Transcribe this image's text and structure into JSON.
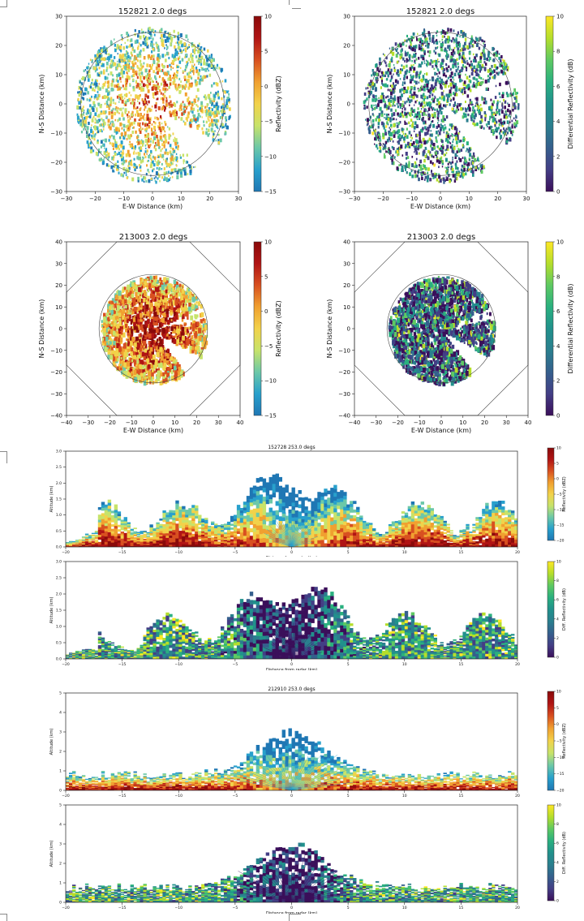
{
  "colors": {
    "refl_scale": [
      "#1f77b4",
      "#28a0cc",
      "#6cc8a8",
      "#c7e36a",
      "#f2d24a",
      "#f0a030",
      "#d85020",
      "#b01414",
      "#8a0a0a"
    ],
    "diff_scale": [
      "#3b0f5a",
      "#433e85",
      "#355f8d",
      "#2a7f8e",
      "#21918c",
      "#2ab07f",
      "#5ec962",
      "#b5de2b",
      "#fde725"
    ]
  },
  "chart_data": [
    {
      "type": "heatmap",
      "title": "152821 2.0 degs",
      "xlabel": "E-W Distance (km)",
      "ylabel": "N-S Distance (km)",
      "xticks": [
        "−30",
        "−20",
        "−10",
        "0",
        "10",
        "20",
        "30"
      ],
      "yticks": [
        "30",
        "20",
        "10",
        "0",
        "−10",
        "−20",
        "−30"
      ],
      "xlim": [
        -30,
        30
      ],
      "ylim": [
        -30,
        30
      ],
      "colorbar_label": "Reflectivity (dBZ)",
      "colorbar_ticks": [
        "10",
        "5",
        "0",
        "−5",
        "−10",
        "−15"
      ],
      "clim": [
        -15,
        10
      ],
      "range_ring_km": 25
    },
    {
      "type": "heatmap",
      "title": "152821 2.0 degs",
      "xlabel": "E-W Distance (km)",
      "ylabel": "N-S Distance (km)",
      "xticks": [
        "−30",
        "−20",
        "−10",
        "0",
        "10",
        "20",
        "30"
      ],
      "yticks": [
        "30",
        "20",
        "10",
        "0",
        "−10",
        "−20",
        "−30"
      ],
      "xlim": [
        -30,
        30
      ],
      "ylim": [
        -30,
        30
      ],
      "colorbar_label": "Differential Reflectivity (dB)",
      "colorbar_ticks": [
        "10",
        "8",
        "6",
        "4",
        "2",
        "0"
      ],
      "clim": [
        0,
        10
      ],
      "range_ring_km": 25
    },
    {
      "type": "heatmap",
      "title": "213003 2.0 degs",
      "xlabel": "E-W Distance (km)",
      "ylabel": "N-S Distance (km)",
      "xticks": [
        "−40",
        "−30",
        "−20",
        "−10",
        "0",
        "10",
        "20",
        "30",
        "40"
      ],
      "yticks": [
        "40",
        "30",
        "20",
        "10",
        "0",
        "−10",
        "−20",
        "−30",
        "−40"
      ],
      "xlim": [
        -40,
        40
      ],
      "ylim": [
        -40,
        40
      ],
      "colorbar_label": "Reflectivity (dBZ)",
      "colorbar_ticks": [
        "10",
        "5",
        "0",
        "−5",
        "−10",
        "−15"
      ],
      "clim": [
        -15,
        10
      ],
      "range_ring_km": 25
    },
    {
      "type": "heatmap",
      "title": "213003 2.0 degs",
      "xlabel": "E-W Distance (km)",
      "ylabel": "N-S Distance (km)",
      "xticks": [
        "−40",
        "−30",
        "−20",
        "−10",
        "0",
        "10",
        "20",
        "30",
        "40"
      ],
      "yticks": [
        "40",
        "30",
        "20",
        "10",
        "0",
        "−10",
        "−20",
        "−30",
        "−40"
      ],
      "xlim": [
        -40,
        40
      ],
      "ylim": [
        -40,
        40
      ],
      "colorbar_label": "Differential Reflectivity (dB)",
      "colorbar_ticks": [
        "10",
        "8",
        "6",
        "4",
        "2",
        "0"
      ],
      "clim": [
        0,
        10
      ],
      "range_ring_km": 25
    },
    {
      "type": "heatmap",
      "title": "152728 253.0 degs",
      "xlabel": "Distance from radar (km)",
      "ylabel": "Altitude (km)",
      "xticks": [
        "−20",
        "−15",
        "−10",
        "−5",
        "0",
        "5",
        "10",
        "15",
        "20"
      ],
      "yticks": [
        "3.0",
        "2.5",
        "2.0",
        "1.5",
        "1.0",
        "0.5",
        "0.0"
      ],
      "xlim": [
        -20,
        20
      ],
      "ylim": [
        0,
        3
      ],
      "colorbar_label": "Reflectivity (dBZ)",
      "colorbar_ticks": [
        "10",
        "5",
        "0",
        "−5",
        "−10",
        "−15",
        "−20"
      ],
      "clim": [
        -20,
        10
      ]
    },
    {
      "type": "heatmap",
      "title": "",
      "xlabel": "Distance from radar (km)",
      "ylabel": "Altitude (km)",
      "xticks": [
        "−20",
        "−15",
        "−10",
        "−5",
        "0",
        "5",
        "10",
        "15",
        "20"
      ],
      "yticks": [
        "3.0",
        "2.5",
        "2.0",
        "1.5",
        "1.0",
        "0.5",
        "0.0"
      ],
      "xlim": [
        -20,
        20
      ],
      "ylim": [
        0,
        3
      ],
      "colorbar_label": "Diff. Reflectivity (dB)",
      "colorbar_ticks": [
        "10",
        "8",
        "6",
        "4",
        "2",
        "0"
      ],
      "clim": [
        0,
        10
      ]
    },
    {
      "type": "heatmap",
      "title": "212910 253.0 degs",
      "xlabel": "Distance from radar (km)",
      "ylabel": "Altitude (km)",
      "xticks": [
        "−20",
        "−15",
        "−10",
        "−5",
        "0",
        "5",
        "10",
        "15",
        "20"
      ],
      "yticks": [
        "5",
        "4",
        "3",
        "2",
        "1",
        "0"
      ],
      "xlim": [
        -20,
        20
      ],
      "ylim": [
        0,
        5
      ],
      "colorbar_label": "Reflectivity (dBZ)",
      "colorbar_ticks": [
        "10",
        "5",
        "0",
        "−5",
        "−10",
        "−15",
        "−20"
      ],
      "clim": [
        -20,
        10
      ]
    },
    {
      "type": "heatmap",
      "title": "",
      "xlabel": "Distance from radar (km)",
      "ylabel": "Altitude (km)",
      "xticks": [
        "−20",
        "−15",
        "−10",
        "−5",
        "0",
        "5",
        "10",
        "15",
        "20"
      ],
      "yticks": [
        "5",
        "4",
        "3",
        "2",
        "1",
        "0"
      ],
      "xlim": [
        -20,
        20
      ],
      "ylim": [
        0,
        5
      ],
      "colorbar_label": "Diff. Reflectivity (dB)",
      "colorbar_ticks": [
        "10",
        "8",
        "6",
        "4",
        "2",
        "0"
      ],
      "clim": [
        0,
        10
      ]
    }
  ]
}
